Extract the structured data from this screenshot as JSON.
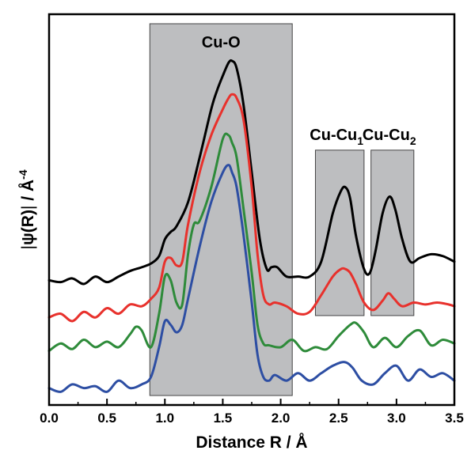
{
  "chart_data": {
    "type": "line",
    "title": "",
    "xlabel": "Distance R / Å",
    "ylabel_parts": {
      "abs_open": "|",
      "psi": "ψ",
      "paren": "(R)",
      "abs_close": "|",
      "slash": " / Å",
      "exp": "-4"
    },
    "xlim": [
      0.0,
      3.5
    ],
    "ylim": [
      0,
      1
    ],
    "y_ticks_labeled": false,
    "x_ticks": [
      "0.0",
      "0.5",
      "1.0",
      "1.5",
      "2.0",
      "2.5",
      "3.0",
      "3.5"
    ],
    "grid": false,
    "regions": [
      {
        "name": "Cu-O",
        "label_main": "Cu-O",
        "label_sub": "",
        "x_start": 0.87,
        "x_end": 2.1,
        "y_bottom": 0.0,
        "y_top": 1.0,
        "color": "#bdbec0"
      },
      {
        "name": "Cu-Cu1",
        "label_main": "Cu-Cu",
        "label_sub": "1",
        "x_start": 2.3,
        "x_end": 2.72,
        "y_bottom": 0.215,
        "y_top": 0.66,
        "color": "#bdbec0"
      },
      {
        "name": "Cu-Cu2",
        "label_main": "Cu-Cu",
        "label_sub": "2",
        "x_start": 2.78,
        "x_end": 3.15,
        "y_bottom": 0.215,
        "y_top": 0.66,
        "color": "#bdbec0"
      }
    ],
    "series": [
      {
        "color": "#000000",
        "x": [
          0.0,
          0.1,
          0.2,
          0.3,
          0.4,
          0.5,
          0.6,
          0.7,
          0.8,
          0.88,
          0.95,
          1.0,
          1.05,
          1.1,
          1.2,
          1.3,
          1.4,
          1.45,
          1.5,
          1.55,
          1.58,
          1.62,
          1.68,
          1.75,
          1.82,
          1.88,
          1.92,
          1.97,
          2.05,
          2.15,
          2.25,
          2.35,
          2.45,
          2.52,
          2.56,
          2.6,
          2.65,
          2.72,
          2.77,
          2.82,
          2.88,
          2.94,
          2.99,
          3.05,
          3.12,
          3.2,
          3.3,
          3.4,
          3.5
        ],
        "y": [
          0.31,
          0.305,
          0.315,
          0.3,
          0.32,
          0.305,
          0.32,
          0.335,
          0.345,
          0.355,
          0.375,
          0.42,
          0.44,
          0.455,
          0.52,
          0.64,
          0.77,
          0.82,
          0.86,
          0.895,
          0.9,
          0.88,
          0.78,
          0.6,
          0.42,
          0.34,
          0.345,
          0.345,
          0.32,
          0.32,
          0.32,
          0.36,
          0.49,
          0.55,
          0.56,
          0.53,
          0.43,
          0.34,
          0.33,
          0.39,
          0.49,
          0.535,
          0.5,
          0.42,
          0.36,
          0.37,
          0.38,
          0.375,
          0.36
        ]
      },
      {
        "color": "#e8312c",
        "x": [
          0.0,
          0.1,
          0.2,
          0.3,
          0.4,
          0.5,
          0.6,
          0.7,
          0.8,
          0.88,
          0.95,
          1.0,
          1.05,
          1.1,
          1.15,
          1.2,
          1.3,
          1.4,
          1.5,
          1.55,
          1.58,
          1.62,
          1.68,
          1.75,
          1.8,
          1.85,
          1.9,
          1.95,
          2.05,
          2.15,
          2.25,
          2.35,
          2.45,
          2.52,
          2.56,
          2.6,
          2.65,
          2.72,
          2.8,
          2.88,
          2.93,
          2.98,
          3.05,
          3.15,
          3.25,
          3.35,
          3.45,
          3.5
        ],
        "y": [
          0.21,
          0.22,
          0.2,
          0.225,
          0.21,
          0.235,
          0.22,
          0.245,
          0.24,
          0.26,
          0.29,
          0.36,
          0.37,
          0.35,
          0.36,
          0.46,
          0.6,
          0.7,
          0.77,
          0.8,
          0.81,
          0.8,
          0.74,
          0.56,
          0.38,
          0.27,
          0.245,
          0.25,
          0.24,
          0.22,
          0.225,
          0.27,
          0.32,
          0.34,
          0.34,
          0.33,
          0.3,
          0.25,
          0.23,
          0.255,
          0.275,
          0.26,
          0.24,
          0.25,
          0.245,
          0.25,
          0.245,
          0.24
        ]
      },
      {
        "color": "#2e8b3a",
        "x": [
          0.0,
          0.1,
          0.2,
          0.3,
          0.4,
          0.5,
          0.6,
          0.7,
          0.75,
          0.8,
          0.88,
          0.95,
          1.0,
          1.05,
          1.1,
          1.15,
          1.2,
          1.25,
          1.3,
          1.4,
          1.5,
          1.55,
          1.58,
          1.62,
          1.68,
          1.75,
          1.8,
          1.85,
          1.9,
          2.0,
          2.1,
          2.2,
          2.3,
          2.4,
          2.5,
          2.6,
          2.65,
          2.72,
          2.8,
          2.9,
          3.0,
          3.1,
          3.2,
          3.3,
          3.4,
          3.5
        ],
        "y": [
          0.12,
          0.14,
          0.125,
          0.15,
          0.13,
          0.145,
          0.13,
          0.165,
          0.185,
          0.175,
          0.13,
          0.22,
          0.32,
          0.31,
          0.25,
          0.245,
          0.38,
          0.46,
          0.47,
          0.56,
          0.69,
          0.7,
          0.68,
          0.64,
          0.5,
          0.33,
          0.19,
          0.14,
          0.135,
          0.13,
          0.15,
          0.12,
          0.13,
          0.125,
          0.16,
          0.19,
          0.195,
          0.17,
          0.13,
          0.155,
          0.13,
          0.16,
          0.175,
          0.135,
          0.15,
          0.14
        ]
      },
      {
        "color": "#2d4ea3",
        "x": [
          0.0,
          0.1,
          0.2,
          0.3,
          0.4,
          0.5,
          0.6,
          0.7,
          0.8,
          0.88,
          0.95,
          1.0,
          1.05,
          1.1,
          1.15,
          1.2,
          1.3,
          1.4,
          1.5,
          1.55,
          1.58,
          1.62,
          1.68,
          1.75,
          1.8,
          1.85,
          1.9,
          1.95,
          2.05,
          2.15,
          2.25,
          2.35,
          2.45,
          2.55,
          2.62,
          2.7,
          2.8,
          2.9,
          3.0,
          3.1,
          3.2,
          3.3,
          3.4,
          3.5
        ],
        "y": [
          0.02,
          0.01,
          0.03,
          0.02,
          0.025,
          0.01,
          0.04,
          0.02,
          0.03,
          0.05,
          0.13,
          0.2,
          0.19,
          0.17,
          0.19,
          0.26,
          0.4,
          0.52,
          0.6,
          0.62,
          0.6,
          0.56,
          0.43,
          0.25,
          0.11,
          0.05,
          0.04,
          0.055,
          0.04,
          0.06,
          0.04,
          0.06,
          0.08,
          0.09,
          0.075,
          0.04,
          0.03,
          0.06,
          0.08,
          0.04,
          0.07,
          0.05,
          0.06,
          0.04
        ]
      }
    ]
  }
}
